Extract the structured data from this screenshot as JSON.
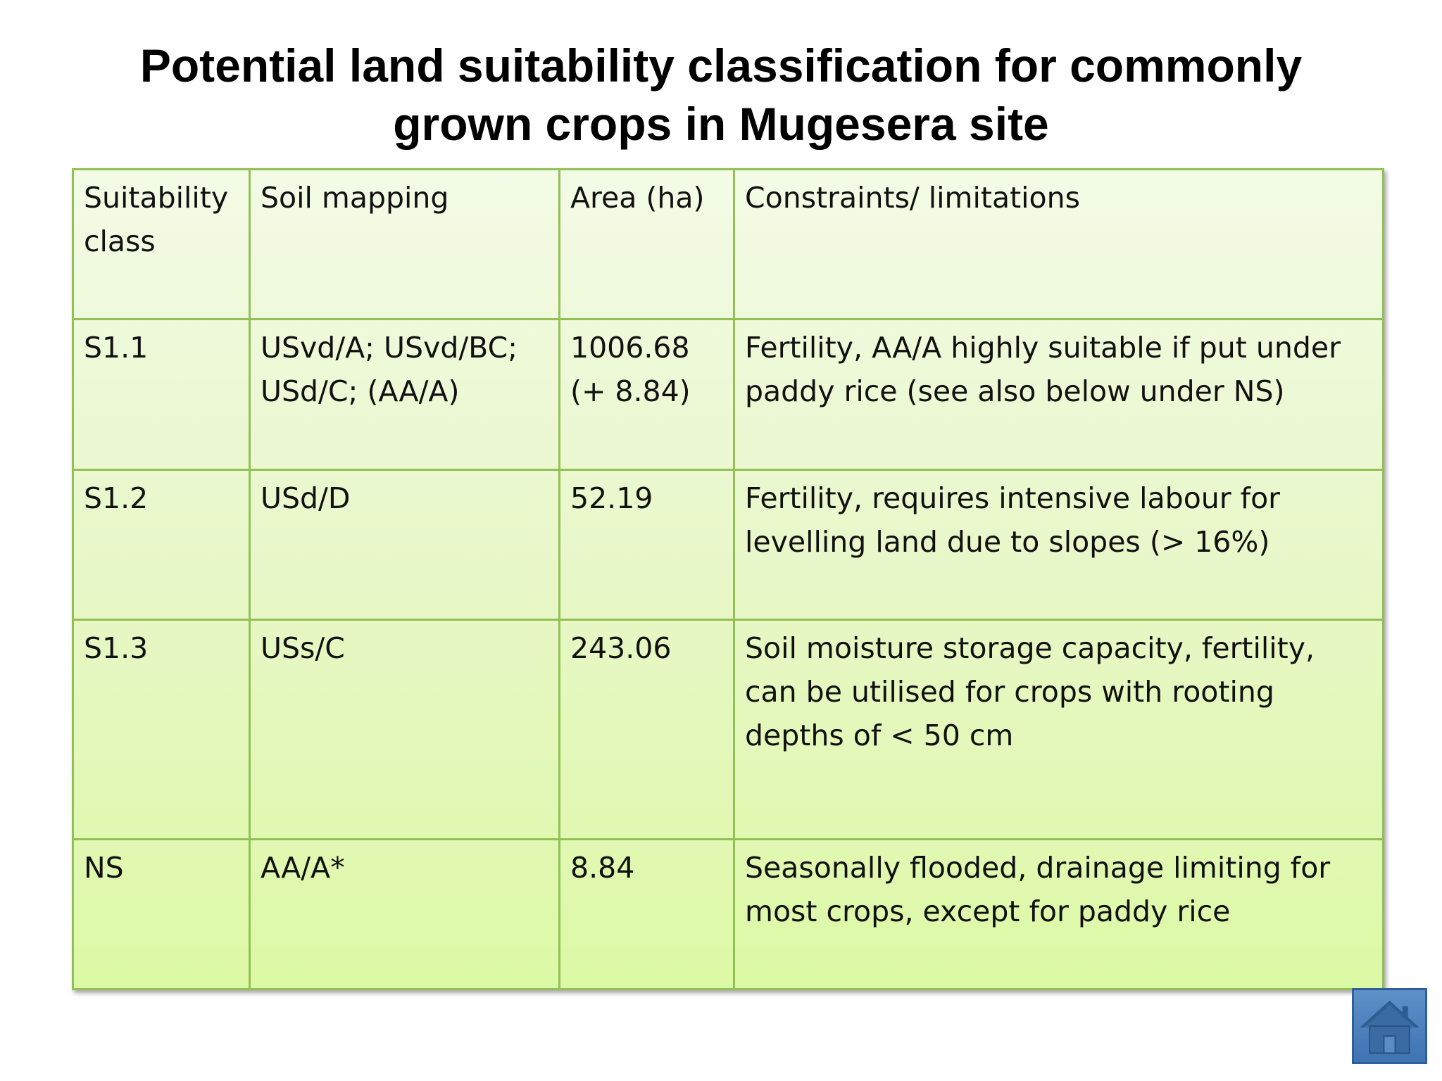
{
  "title": {
    "line1": "Potential land suitability classification for commonly",
    "line2": "grown crops in Mugesera site"
  },
  "table": {
    "headers": [
      "Suitability class",
      "Soil mapping",
      "Area (ha)",
      "Constraints/ limitations"
    ],
    "rows": [
      [
        "S1.1",
        "USvd/A; USvd/BC; USd/C; (AA/A)",
        "1006.68 (+ 8.84)",
        "Fertility, AA/A highly suitable if put under paddy rice (see also below under NS)"
      ],
      [
        "S1.2",
        "USd/D",
        "52.19",
        "Fertility, requires intensive labour for levelling land due to slopes (> 16%)"
      ],
      [
        "S1.3",
        "USs/C",
        "243.06",
        "Soil moisture storage capacity, fertility, can be utilised for crops with rooting depths of < 50 cm"
      ],
      [
        "NS",
        "AA/A*",
        "8.84",
        "Seasonally flooded, drainage limiting for most crops, except for paddy rice"
      ]
    ]
  },
  "nav": {
    "home_icon": "home-icon"
  },
  "colors": {
    "table_border": "#93c055",
    "table_fill_top": "#f3fbe6",
    "table_fill_bottom": "#dcf9a5",
    "home_button": "#4a7dbb"
  }
}
